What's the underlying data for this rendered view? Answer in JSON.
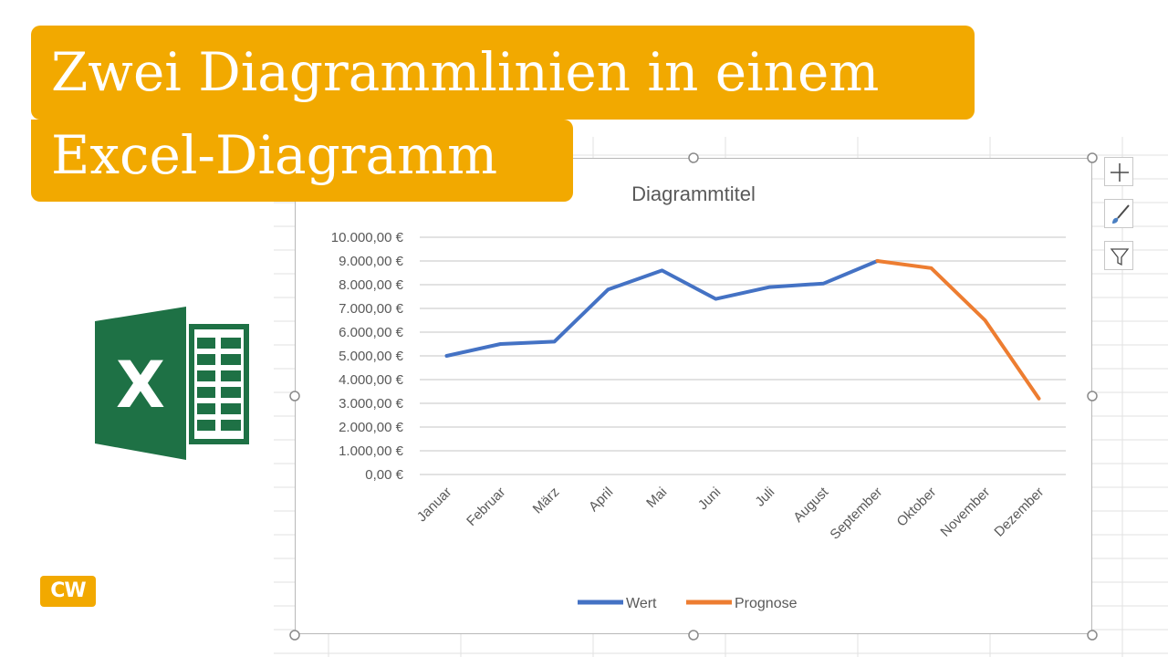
{
  "banner": {
    "line1": "Zwei Diagrammlinien in einem",
    "line2": "Excel-Diagramm"
  },
  "brand": {
    "badge_text": "CW",
    "excel_letter": "X"
  },
  "colors": {
    "banner": "#f2a900",
    "wert": "#4472c4",
    "prognose": "#ed7d31",
    "excel_green": "#1e7145"
  },
  "chart_tools": {
    "icons": [
      "plus-icon",
      "brush-icon",
      "filter-icon"
    ]
  },
  "chart_data": {
    "type": "line",
    "title": "Diagrammtitel",
    "categories": [
      "Januar",
      "Februar",
      "März",
      "April",
      "Mai",
      "Juni",
      "Juli",
      "August",
      "September",
      "Oktober",
      "November",
      "Dezember"
    ],
    "yticks": [
      "0,00 €",
      "1.000,00 €",
      "2.000,00 €",
      "3.000,00 €",
      "4.000,00 €",
      "5.000,00 €",
      "6.000,00 €",
      "7.000,00 €",
      "8.000,00 €",
      "9.000,00 €",
      "10.000,00 €"
    ],
    "ylim": [
      0,
      10000
    ],
    "grid": true,
    "legend_position": "bottom",
    "series": [
      {
        "name": "Wert",
        "color": "#4472c4",
        "values": [
          5000,
          5500,
          5600,
          7800,
          8600,
          7400,
          7900,
          8050,
          9000,
          null,
          null,
          null
        ]
      },
      {
        "name": "Prognose",
        "color": "#ed7d31",
        "values": [
          null,
          null,
          null,
          null,
          null,
          null,
          null,
          null,
          9000,
          8700,
          6500,
          3200
        ]
      }
    ]
  }
}
